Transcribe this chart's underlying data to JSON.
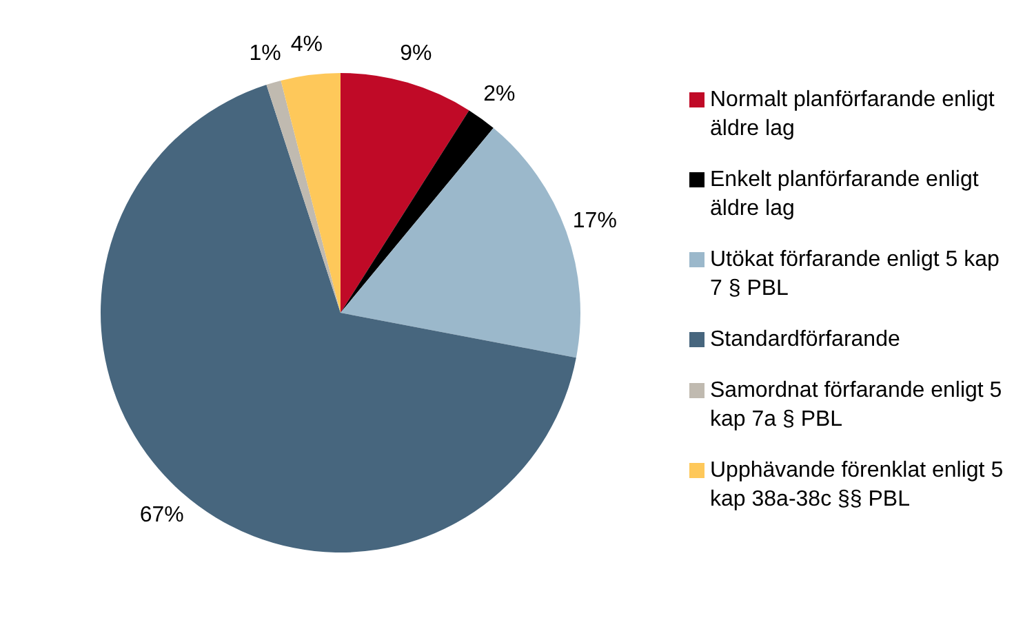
{
  "chart_data": {
    "type": "pie",
    "categories": [
      "Normalt planförfarande enligt äldre lag",
      "Enkelt planförfarande enligt äldre lag",
      "Utökat förfarande enligt 5 kap 7 § PBL",
      "Standardförfarande",
      "Samordnat förfarande enligt 5 kap 7a § PBL",
      "Upphävande förenklat enligt 5 kap 38a-38c §§ PBL"
    ],
    "values": [
      9,
      2,
      17,
      67,
      1,
      4
    ],
    "value_labels": [
      "9%",
      "2%",
      "17%",
      "67%",
      "1%",
      "4%"
    ],
    "colors": [
      "#c00a27",
      "#000000",
      "#9bb8cb",
      "#47667e",
      "#c0bab0",
      "#fec85a"
    ],
    "legend": "right"
  }
}
